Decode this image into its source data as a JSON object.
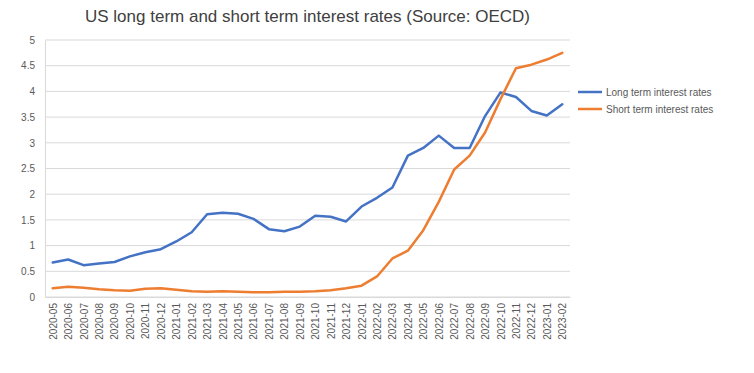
{
  "chart_data": {
    "type": "line",
    "title": "US long term and short term interest rates (Source: OECD)",
    "categories": [
      "2020-05",
      "2020-06",
      "2020-07",
      "2020-08",
      "2020-09",
      "2020-10",
      "2020-11",
      "2020-12",
      "2021-01",
      "2021-02",
      "2021-03",
      "2021-04",
      "2021-05",
      "2021-06",
      "2021-07",
      "2021-08",
      "2021-09",
      "2021-10",
      "2021-11",
      "2021-12",
      "2022-01",
      "2022-02",
      "2022-03",
      "2022-04",
      "2022-05",
      "2022-06",
      "2022-07",
      "2022-08",
      "2022-09",
      "2022-10",
      "2022-11",
      "2022-12",
      "2023-01",
      "2023-02"
    ],
    "series": [
      {
        "name": "Long term interest rates",
        "color": "#4472c4",
        "values": [
          0.67,
          0.73,
          0.62,
          0.65,
          0.68,
          0.79,
          0.87,
          0.93,
          1.08,
          1.26,
          1.61,
          1.64,
          1.62,
          1.52,
          1.32,
          1.28,
          1.37,
          1.58,
          1.56,
          1.47,
          1.76,
          1.93,
          2.13,
          2.75,
          2.9,
          3.14,
          2.9,
          2.9,
          3.52,
          3.98,
          3.89,
          3.62,
          3.53,
          3.75
        ]
      },
      {
        "name": "Short term interest rates",
        "color": "#ed7d31",
        "values": [
          0.17,
          0.2,
          0.18,
          0.15,
          0.13,
          0.12,
          0.16,
          0.17,
          0.14,
          0.11,
          0.1,
          0.11,
          0.1,
          0.09,
          0.09,
          0.1,
          0.1,
          0.11,
          0.13,
          0.17,
          0.22,
          0.4,
          0.75,
          0.9,
          1.3,
          1.85,
          2.48,
          2.75,
          3.2,
          3.85,
          4.45,
          4.52,
          4.62,
          4.75
        ]
      }
    ],
    "ylim": [
      0,
      5
    ],
    "yticks": [
      0,
      0.5,
      1,
      1.5,
      2,
      2.5,
      3,
      3.5,
      4,
      4.5,
      5
    ],
    "grid": true,
    "legend": "right"
  }
}
